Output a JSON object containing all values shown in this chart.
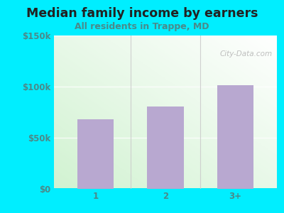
{
  "title": "Median family income by earners",
  "subtitle": "All residents in Trappe, MD",
  "categories": [
    "1",
    "2",
    "3+"
  ],
  "values": [
    68000,
    80000,
    101000
  ],
  "bar_color": "#b8a8d0",
  "ylim": [
    0,
    150000
  ],
  "ytick_vals": [
    0,
    50000,
    100000,
    150000
  ],
  "ytick_labels": [
    "$0",
    "$50k",
    "$100k",
    "$150k"
  ],
  "background_outer": "#00eeff",
  "title_color": "#222222",
  "subtitle_color": "#4a8a8a",
  "tick_color": "#4a8a8a",
  "watermark": "City-Data.com",
  "title_fontsize": 12.5,
  "subtitle_fontsize": 9,
  "tick_fontsize": 8.5,
  "separator_color": "#cccccc",
  "grid_color": "#dddddd"
}
